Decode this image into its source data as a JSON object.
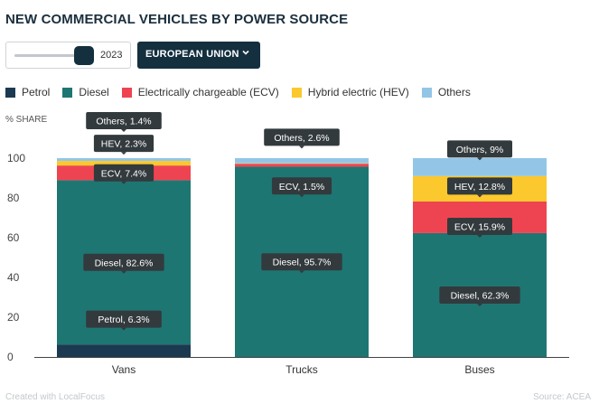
{
  "title": "NEW COMMERCIAL VEHICLES BY POWER SOURCE",
  "controls": {
    "year": "2023",
    "year_fraction": 1.0,
    "region": "EUROPEAN UNION"
  },
  "footer": {
    "credit": "Created with LocalFocus",
    "source": "Source: ACEA"
  },
  "chart_data": {
    "type": "bar",
    "stacked": true,
    "categories": [
      "Vans",
      "Trucks",
      "Buses"
    ],
    "ylabel": "% SHARE",
    "ylim": [
      0,
      100
    ],
    "yticks": [
      "0",
      "20",
      "40",
      "60",
      "80",
      "100"
    ],
    "series": [
      {
        "name": "Petrol",
        "color": "#1b3a52",
        "values": [
          6.3,
          0,
          0
        ]
      },
      {
        "name": "Diesel",
        "color": "#1e7673",
        "values": [
          82.6,
          95.7,
          62.3
        ]
      },
      {
        "name": "Electrically chargeable (ECV)",
        "color": "#ee4451",
        "values": [
          7.4,
          1.5,
          15.9
        ]
      },
      {
        "name": "Hybrid electric (HEV)",
        "color": "#fbc82d",
        "values": [
          2.3,
          0.2,
          12.8
        ]
      },
      {
        "name": "Others",
        "color": "#93c6e6",
        "values": [
          1.4,
          2.6,
          9
        ]
      }
    ],
    "data_labels": [
      {
        "category": 0,
        "series": 0,
        "text": "Petrol, 6.3%"
      },
      {
        "category": 0,
        "series": 1,
        "text": "Diesel, 82.6%"
      },
      {
        "category": 0,
        "series": 2,
        "text": "ECV, 7.4%"
      },
      {
        "category": 0,
        "series": 3,
        "text": "HEV, 2.3%"
      },
      {
        "category": 0,
        "series": 4,
        "text": "Others, 1.4%"
      },
      {
        "category": 1,
        "series": 1,
        "text": "Diesel, 95.7%"
      },
      {
        "category": 1,
        "series": 2,
        "text": "ECV, 1.5%"
      },
      {
        "category": 1,
        "series": 4,
        "text": "Others, 2.6%"
      },
      {
        "category": 2,
        "series": 1,
        "text": "Diesel, 62.3%"
      },
      {
        "category": 2,
        "series": 2,
        "text": "ECV, 15.9%"
      },
      {
        "category": 2,
        "series": 3,
        "text": "HEV, 12.8%"
      },
      {
        "category": 2,
        "series": 4,
        "text": "Others, 9%"
      }
    ]
  }
}
